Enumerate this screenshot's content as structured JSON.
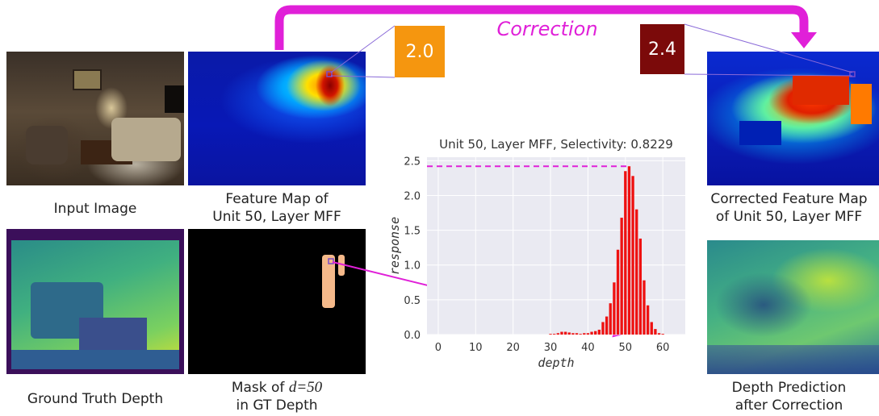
{
  "captions": {
    "input_image": "Input Image",
    "feature_map_line1": "Feature Map of",
    "feature_map_line2": "Unit 50, Layer MFF",
    "ground_truth": "Ground Truth Depth",
    "mask_line1_prefix": "Mask of ",
    "mask_line1_math": "d=50",
    "mask_line2": "in GT Depth",
    "corrected_line1": "Corrected Feature Map",
    "corrected_line2": "of Unit 50, Layer MFF",
    "prediction_line1": "Depth Prediction",
    "prediction_line2": "after Correction"
  },
  "arrow_label": "Correction",
  "callouts": {
    "before_value": "2.0",
    "after_value": "2.4"
  },
  "colors": {
    "correction_arrow": "#e020d8",
    "callout_before": "#f5960f",
    "callout_after": "#7b0a0a",
    "bars": "#ee1111",
    "max_line": "#e020d8",
    "chart_bg": "#eaeaf2"
  },
  "chart_data": {
    "type": "bar",
    "title": "Unit 50, Layer MFF, Selectivity: 0.8229",
    "xlabel": "depth",
    "ylabel": "response",
    "xlim": [
      -3,
      66
    ],
    "ylim": [
      0,
      2.55
    ],
    "xticks": [
      0,
      10,
      20,
      30,
      40,
      50,
      60
    ],
    "yticks": [
      0.0,
      0.5,
      1.0,
      1.5,
      2.0,
      2.5
    ],
    "grid": true,
    "max_line": 2.42,
    "x": [
      0,
      1,
      2,
      3,
      4,
      5,
      6,
      7,
      8,
      9,
      10,
      11,
      12,
      13,
      14,
      15,
      16,
      17,
      18,
      19,
      20,
      21,
      22,
      23,
      24,
      25,
      26,
      27,
      28,
      29,
      30,
      31,
      32,
      33,
      34,
      35,
      36,
      37,
      38,
      39,
      40,
      41,
      42,
      43,
      44,
      45,
      46,
      47,
      48,
      49,
      50,
      51,
      52,
      53,
      54,
      55,
      56,
      57,
      58,
      59,
      60,
      61,
      62,
      63
    ],
    "values": [
      0,
      0,
      0,
      0,
      0,
      0,
      0,
      0,
      0,
      0,
      0,
      0,
      0,
      0,
      0,
      0,
      0,
      0,
      0,
      0,
      0,
      0,
      0,
      0,
      0,
      0,
      0,
      0,
      0,
      0,
      0.01,
      0.01,
      0.02,
      0.04,
      0.04,
      0.03,
      0.02,
      0.02,
      0.01,
      0.02,
      0.02,
      0.04,
      0.05,
      0.07,
      0.18,
      0.26,
      0.45,
      0.75,
      1.22,
      1.68,
      2.35,
      2.42,
      2.28,
      1.8,
      1.38,
      0.78,
      0.42,
      0.18,
      0.08,
      0.02,
      0.01,
      0,
      0,
      0
    ]
  }
}
